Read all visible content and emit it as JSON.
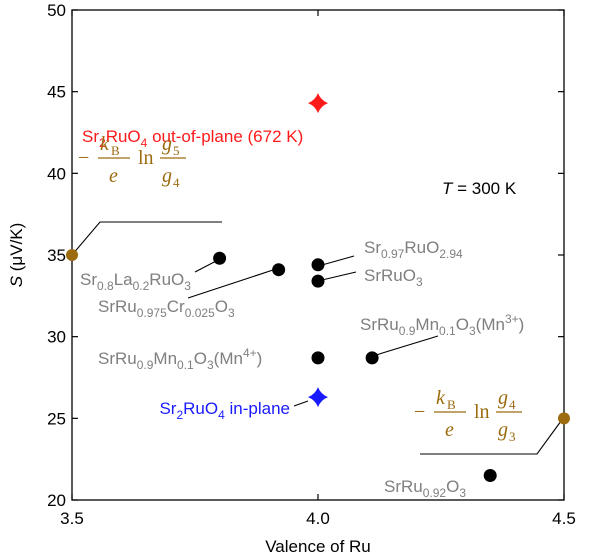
{
  "chart_data": {
    "type": "scatter",
    "xlabel": "Valence of Ru",
    "ylabel": {
      "main": "S",
      "unit": " (μV/K)"
    },
    "xlim": [
      3.5,
      4.5
    ],
    "ylim": [
      20,
      50
    ],
    "xticks": [
      {
        "value": 3.5,
        "label": "3.5"
      },
      {
        "value": 4.0,
        "label": "4.0"
      },
      {
        "value": 4.5,
        "label": "4.5"
      }
    ],
    "yticks": [
      {
        "value": 20,
        "label": "20"
      },
      {
        "value": 25,
        "label": "25"
      },
      {
        "value": 30,
        "label": "30"
      },
      {
        "value": 35,
        "label": "35"
      },
      {
        "value": 40,
        "label": "40"
      },
      {
        "value": 45,
        "label": "45"
      },
      {
        "value": 50,
        "label": "50"
      }
    ],
    "annotation_temperature": {
      "symbol": "T",
      "text": " = 300 K"
    },
    "colors": {
      "black": "#000000",
      "gray_label": "#7f7f7f",
      "red": "#ff1a1a",
      "blue": "#1a1aff",
      "gold": "#9c6b0f"
    },
    "points": [
      {
        "id": "sr08la02ruo3",
        "x": 3.8,
        "y": 34.8,
        "marker": "circle",
        "color": "#000000",
        "label": [
          [
            "Sr",
            ""
          ],
          [
            "0.8",
            "sub"
          ],
          [
            "La",
            ""
          ],
          [
            "0.2",
            "sub"
          ],
          [
            "RuO",
            ""
          ],
          [
            "3",
            "sub"
          ]
        ]
      },
      {
        "id": "srru0975cr0025o3",
        "x": 3.92,
        "y": 34.1,
        "marker": "circle",
        "color": "#000000",
        "label": [
          [
            "SrRu",
            ""
          ],
          [
            "0.975",
            "sub"
          ],
          [
            "Cr",
            ""
          ],
          [
            "0.025",
            "sub"
          ],
          [
            "O",
            ""
          ],
          [
            "3",
            "sub"
          ]
        ]
      },
      {
        "id": "sr097ruo294",
        "x": 4.0,
        "y": 34.4,
        "marker": "circle",
        "color": "#000000",
        "label": [
          [
            "Sr",
            ""
          ],
          [
            "0.97",
            "sub"
          ],
          [
            "RuO",
            ""
          ],
          [
            "2.94",
            "sub"
          ]
        ]
      },
      {
        "id": "srruo3",
        "x": 4.0,
        "y": 33.4,
        "marker": "circle",
        "color": "#000000",
        "label": [
          [
            "SrRuO",
            ""
          ],
          [
            "3",
            "sub"
          ]
        ]
      },
      {
        "id": "srru09mn01o3-mn4",
        "x": 4.0,
        "y": 28.7,
        "marker": "circle",
        "color": "#000000",
        "label": [
          [
            "SrRu",
            ""
          ],
          [
            "0.9",
            "sub"
          ],
          [
            "Mn",
            ""
          ],
          [
            "0.1",
            "sub"
          ],
          [
            "O",
            ""
          ],
          [
            "3",
            "sub"
          ],
          [
            "(Mn",
            ""
          ],
          [
            "4+",
            "sup"
          ],
          [
            ")",
            ""
          ]
        ]
      },
      {
        "id": "srru09mn01o3-mn3",
        "x": 4.11,
        "y": 28.7,
        "marker": "circle",
        "color": "#000000",
        "label": [
          [
            "SrRu",
            ""
          ],
          [
            "0.9",
            "sub"
          ],
          [
            "Mn",
            ""
          ],
          [
            "0.1",
            "sub"
          ],
          [
            "O",
            ""
          ],
          [
            "3",
            "sub"
          ],
          [
            "(Mn",
            ""
          ],
          [
            "3+",
            "sup"
          ],
          [
            ")",
            ""
          ]
        ]
      },
      {
        "id": "srru092o3",
        "x": 4.35,
        "y": 21.5,
        "marker": "circle",
        "color": "#000000",
        "label": [
          [
            "SrRu",
            ""
          ],
          [
            "0.92",
            "sub"
          ],
          [
            "O",
            ""
          ],
          [
            "3",
            "sub"
          ]
        ]
      },
      {
        "id": "sr2ruo4-out-of-plane",
        "x": 4.0,
        "y": 44.3,
        "marker": "star",
        "color": "#ff1a1a",
        "label": [
          [
            "Sr",
            ""
          ],
          [
            "2",
            "sub"
          ],
          [
            "RuO",
            ""
          ],
          [
            "4",
            "sub"
          ],
          [
            " out-of-plane (672 K)",
            ""
          ]
        ]
      },
      {
        "id": "sr2ruo4-in-plane",
        "x": 4.0,
        "y": 26.3,
        "marker": "star",
        "color": "#1a1aff",
        "label": [
          [
            "Sr",
            ""
          ],
          [
            "2",
            "sub"
          ],
          [
            "RuO",
            ""
          ],
          [
            "4",
            "sub"
          ],
          [
            " in-plane",
            ""
          ]
        ]
      },
      {
        "id": "limit-g5-g4",
        "x": 3.5,
        "y": 35.0,
        "marker": "circle-small",
        "color": "#9c6b0f",
        "formula": {
          "lead": "−",
          "num": "k",
          "num_sub": "B",
          "den": "e",
          "ln": "ln",
          "frac_num": "g",
          "frac_num_sub": "5",
          "frac_den": "g",
          "frac_den_sub": "4"
        }
      },
      {
        "id": "limit-g4-g3",
        "x": 4.5,
        "y": 25.0,
        "marker": "circle-small",
        "color": "#9c6b0f",
        "formula": {
          "lead": "−",
          "num": "k",
          "num_sub": "B",
          "den": "e",
          "ln": "ln",
          "frac_num": "g",
          "frac_num_sub": "4",
          "frac_den": "g",
          "frac_den_sub": "3"
        }
      }
    ]
  }
}
